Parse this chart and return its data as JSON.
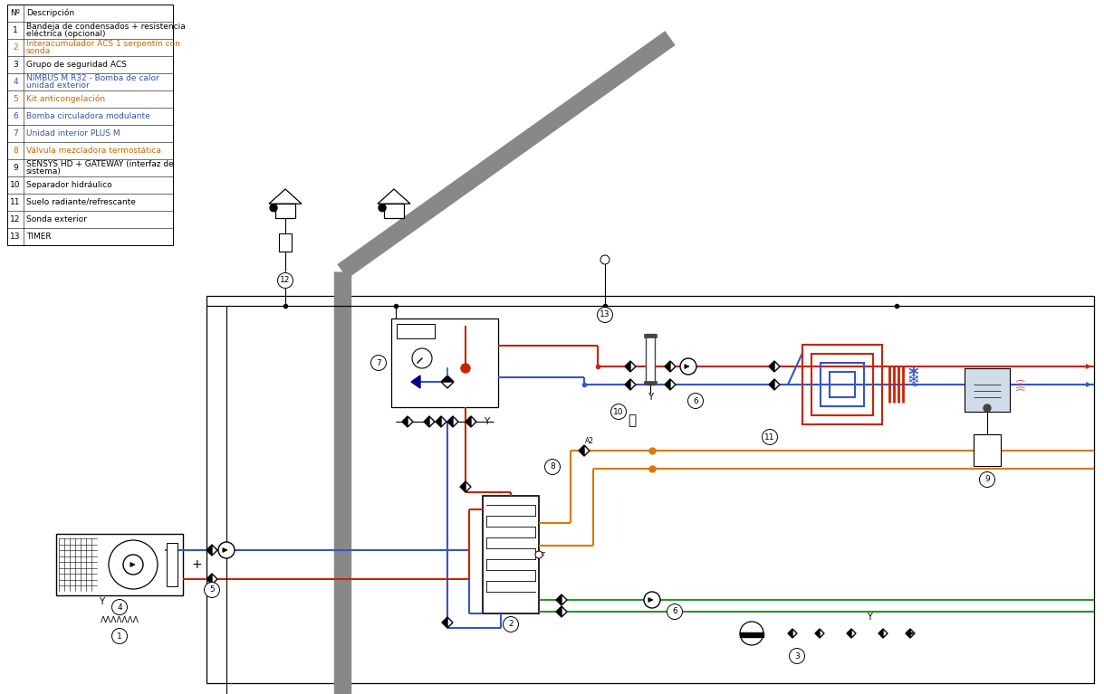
{
  "bg_color": "#ffffff",
  "table_items": [
    [
      "Nº",
      "Descripción",
      "black"
    ],
    [
      "1",
      "Bandeja de condensados + resistencia\neléctrica (opcional)",
      "black"
    ],
    [
      "2",
      "Interacumulador ACS 1 serpentín con\nsonda",
      "#cc6600"
    ],
    [
      "3",
      "Grupo de seguridad ACS",
      "black"
    ],
    [
      "4",
      "NIMBUS M R32 - Bomba de calor\nunidad exterior",
      "#3355aa"
    ],
    [
      "5",
      "Kit anticongelación",
      "#cc6600"
    ],
    [
      "6",
      "Bomba circuladora modulante",
      "#3355aa"
    ],
    [
      "7",
      "Unidad interior PLUS M",
      "#3355aa"
    ],
    [
      "8",
      "Válvula mezcladora termostática",
      "#cc6600"
    ],
    [
      "9",
      "SENSYS HD + GATEWAY (interfaz de\nsistema)",
      "black"
    ],
    [
      "10",
      "Separador hidráulico",
      "black"
    ],
    [
      "11",
      "Suelo radiante/refrescante",
      "black"
    ],
    [
      "12",
      "Sonda exterior",
      "black"
    ],
    [
      "13",
      "TIMER",
      "black"
    ]
  ],
  "RED": "#cc2200",
  "BLUE": "#3355cc",
  "ORANGE": "#dd7700",
  "GREEN": "#229922",
  "BLACK": "#000000",
  "GRAY": "#888888",
  "DGRAY": "#444444"
}
